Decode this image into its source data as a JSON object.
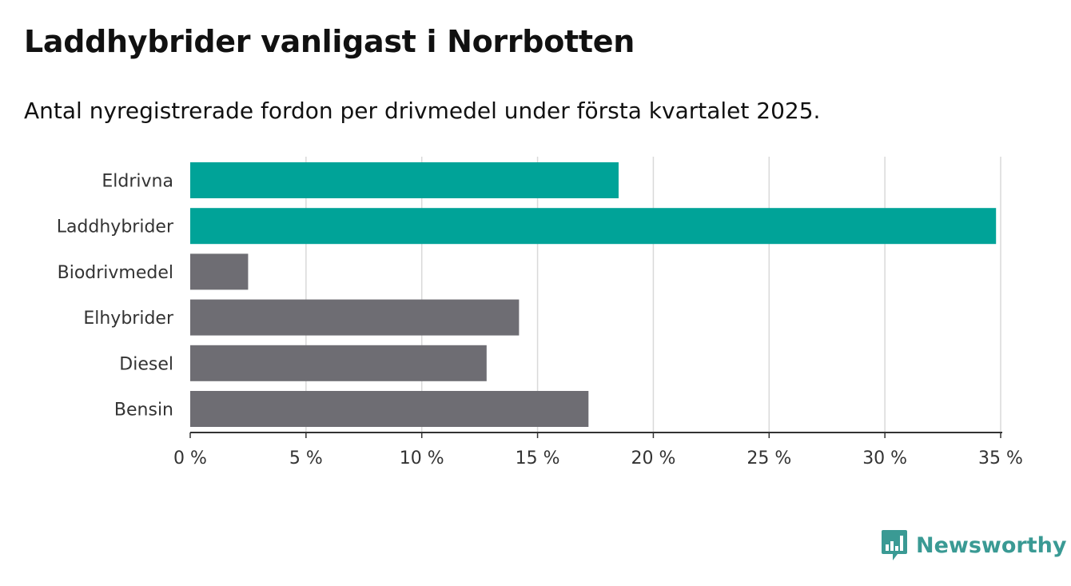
{
  "title": "Laddhybrider vanligast i Norrbotten",
  "subtitle": "Antal nyregistrerade fordon per drivmedel under första kvartalet 2025.",
  "brand": {
    "name": "Newsworthy",
    "icon": "bar-chart-speech-bubble-icon",
    "color": "#3a9a94"
  },
  "colors": {
    "highlight": "#00a398",
    "default": "#6e6d73",
    "grid": "#d9d9d9",
    "axis": "#333333"
  },
  "chart_data": {
    "type": "bar",
    "orientation": "horizontal",
    "title": "Laddhybrider vanligast i Norrbotten",
    "subtitle": "Antal nyregistrerade fordon per drivmedel under första kvartalet 2025.",
    "categories": [
      "Eldrivna",
      "Laddhybrider",
      "Biodrivmedel",
      "Elhybrider",
      "Diesel",
      "Bensin"
    ],
    "values": [
      18.5,
      34.8,
      2.5,
      14.2,
      12.8,
      17.2
    ],
    "highlighted": [
      true,
      true,
      false,
      false,
      false,
      false
    ],
    "unit": "%",
    "xlim": [
      0,
      35
    ],
    "ticks": [
      0,
      5,
      10,
      15,
      20,
      25,
      30,
      35
    ],
    "tick_labels": [
      "0 %",
      "5 %",
      "10 %",
      "15 %",
      "20 %",
      "25 %",
      "30 %",
      "35 %"
    ],
    "grid": true,
    "xlabel": "",
    "ylabel": ""
  }
}
